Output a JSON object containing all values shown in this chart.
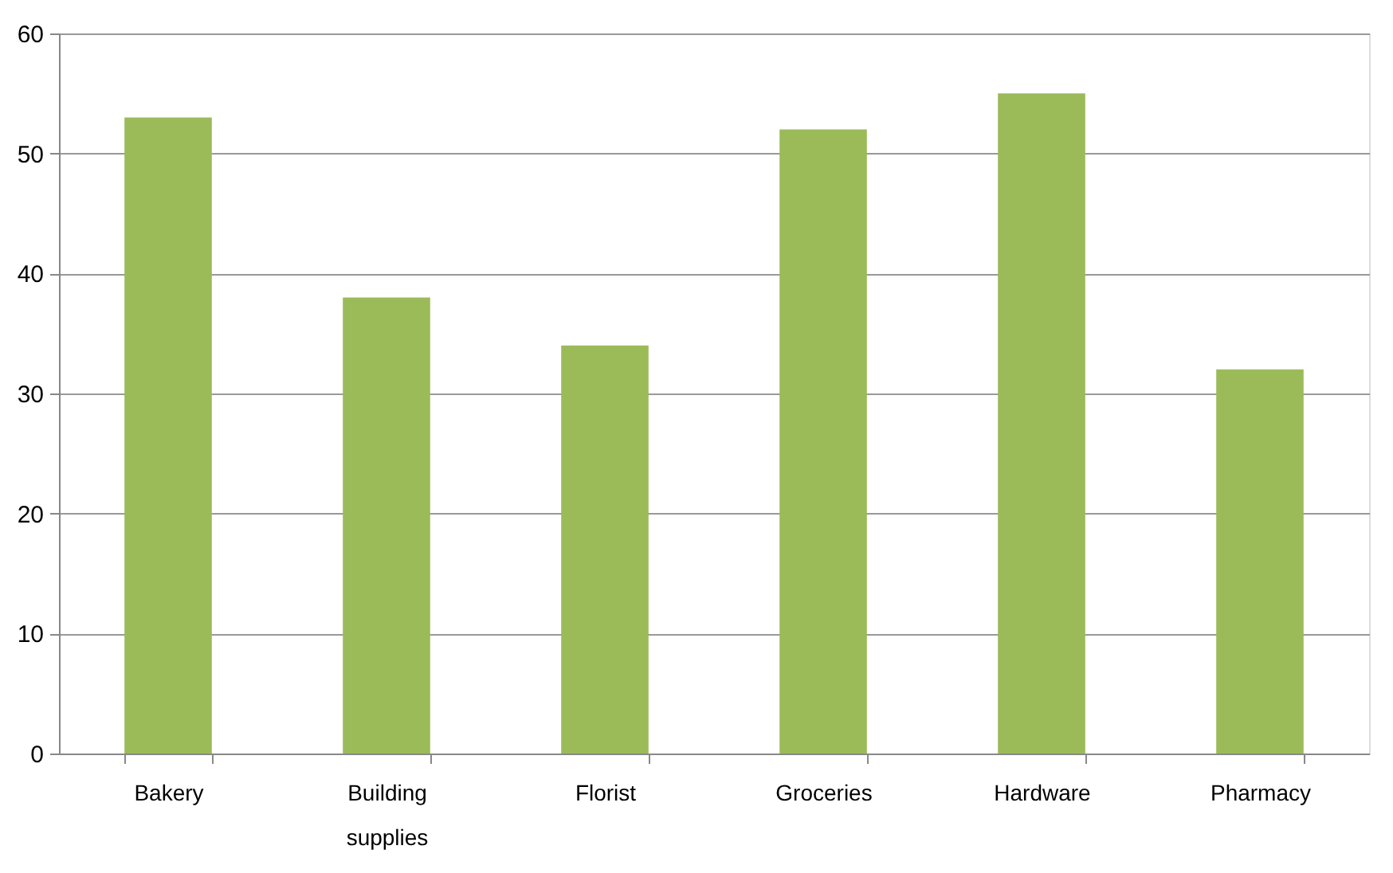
{
  "chart_data": {
    "type": "bar",
    "categories": [
      "Bakery",
      "Building supplies",
      "Florist",
      "Groceries",
      "Hardware",
      "Pharmacy"
    ],
    "values": [
      53,
      38,
      34,
      52,
      55,
      32
    ],
    "color": "#9bbb59",
    "ylim": [
      0,
      60
    ],
    "yticks": [
      0,
      10,
      20,
      30,
      40,
      50,
      60
    ],
    "grid": "y"
  }
}
